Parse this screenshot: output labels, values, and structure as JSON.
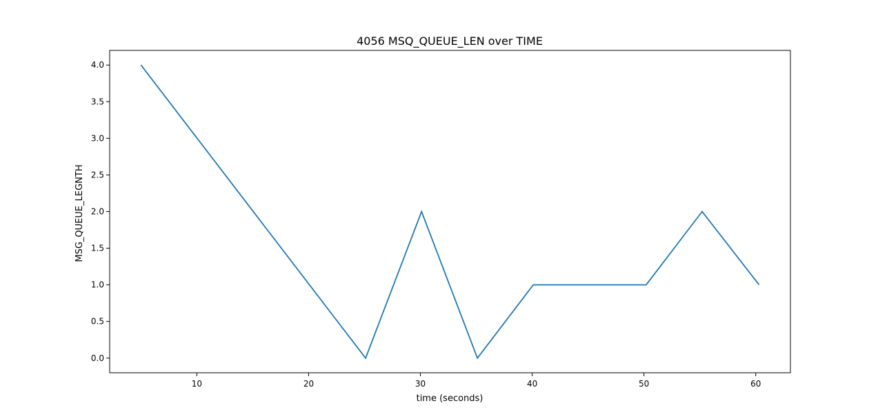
{
  "chart_data": {
    "type": "line",
    "title": "4056 MSQ_QUEUE_LEN over TIME",
    "xlabel": "time (seconds)",
    "ylabel": "MSG_QUEUE_LEGNTH",
    "x_ticks": [
      10,
      20,
      30,
      40,
      50,
      60
    ],
    "y_ticks": [
      0.0,
      0.5,
      1.0,
      1.5,
      2.0,
      2.5,
      3.0,
      3.5,
      4.0
    ],
    "xlim": [
      2.2,
      63.1
    ],
    "ylim": [
      -0.2,
      4.2
    ],
    "grid": false,
    "series": [
      {
        "color": "#1f77b4",
        "x": [
          5.0,
          25.1,
          30.1,
          35.1,
          40.1,
          50.2,
          55.2,
          60.3
        ],
        "y": [
          4,
          0,
          2,
          0,
          1,
          1,
          2,
          1
        ]
      }
    ]
  }
}
